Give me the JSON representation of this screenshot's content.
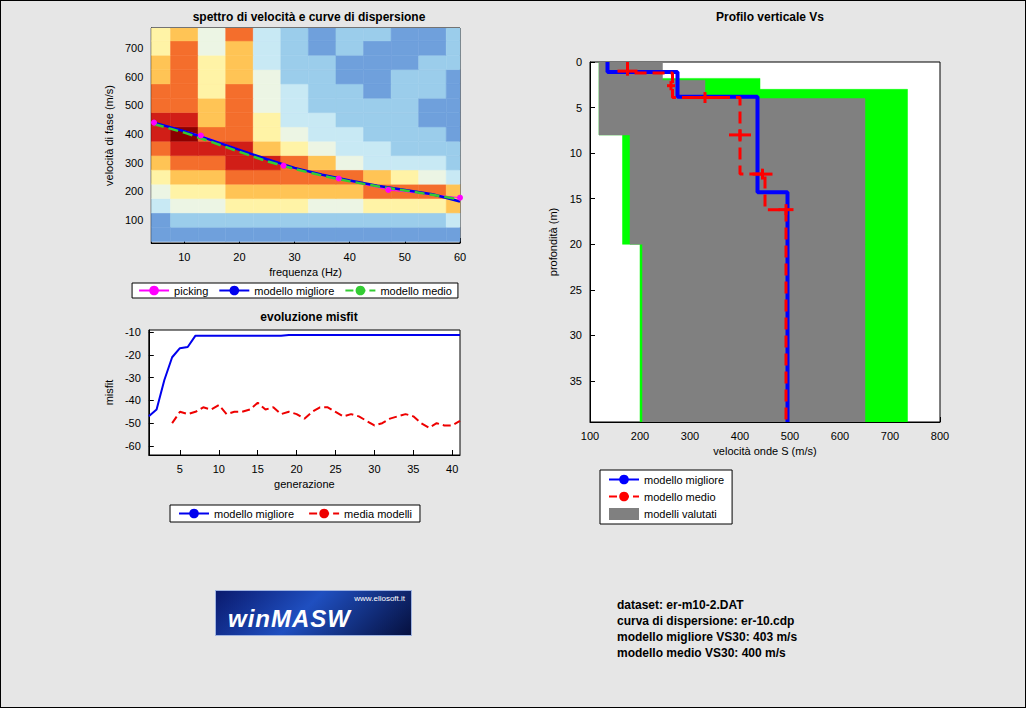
{
  "chart_data": [
    {
      "type": "line",
      "title": "spettro di velocità e curve di dispersione",
      "xlabel": "frequenza (Hz)",
      "ylabel": "velocità di fase (m/s)",
      "xlim": [
        4,
        60
      ],
      "xticks": [
        10,
        20,
        30,
        40,
        50,
        60
      ],
      "ylim": [
        20,
        770
      ],
      "yticks": [
        100,
        200,
        300,
        400,
        500,
        600,
        700
      ],
      "grid": false,
      "legend": "below",
      "spectrum": {
        "x": [
          5,
          10,
          15,
          20,
          25,
          30,
          35,
          40,
          45,
          50,
          55,
          60
        ],
        "y": [
          50,
          100,
          150,
          200,
          250,
          300,
          350,
          400,
          450,
          500,
          550,
          600,
          650,
          700,
          750
        ],
        "values": [
          [
            2,
            2,
            2,
            2,
            2,
            2,
            2,
            2,
            2,
            2,
            2,
            2
          ],
          [
            2,
            3,
            3,
            3,
            3,
            3,
            3,
            3,
            3,
            3,
            3,
            4
          ],
          [
            4,
            5,
            5,
            6,
            6,
            6,
            5,
            5,
            6,
            6,
            6,
            7
          ],
          [
            5,
            6,
            6,
            7,
            7,
            7,
            7,
            7,
            8,
            8,
            8,
            7
          ],
          [
            6,
            7,
            7,
            8,
            8,
            8,
            8,
            8,
            7,
            6,
            5,
            4
          ],
          [
            7,
            8,
            8,
            9,
            9,
            8,
            7,
            5,
            4,
            4,
            4,
            3
          ],
          [
            8,
            9,
            9,
            9,
            7,
            6,
            5,
            4,
            4,
            3,
            3,
            3
          ],
          [
            9,
            10,
            8,
            8,
            6,
            5,
            4,
            4,
            3,
            3,
            3,
            2
          ],
          [
            9,
            9,
            7,
            8,
            6,
            4,
            4,
            3,
            3,
            3,
            2,
            2
          ],
          [
            8,
            8,
            7,
            8,
            5,
            4,
            3,
            3,
            3,
            3,
            2,
            2
          ],
          [
            8,
            8,
            6,
            8,
            5,
            4,
            3,
            3,
            2,
            3,
            3,
            2
          ],
          [
            7,
            8,
            6,
            7,
            5,
            3,
            3,
            2,
            2,
            3,
            3,
            2
          ],
          [
            7,
            8,
            6,
            7,
            4,
            3,
            3,
            2,
            2,
            2,
            3,
            3
          ],
          [
            6,
            8,
            5,
            7,
            4,
            3,
            2,
            3,
            2,
            2,
            2,
            3
          ],
          [
            6,
            7,
            5,
            8,
            4,
            3,
            2,
            3,
            3,
            2,
            2,
            3
          ]
        ]
      },
      "series": [
        {
          "name": "picking",
          "color": "#ff00ff",
          "marker": "circle",
          "line_style": "solid",
          "x": [
            4.5,
            13,
            28,
            38,
            47,
            60
          ],
          "values": [
            440,
            395,
            290,
            245,
            205,
            178
          ]
        },
        {
          "name": "modello migliore",
          "color": "#0000ee",
          "line_style": "solid",
          "x": [
            4.5,
            10,
            15,
            20,
            25,
            30,
            35,
            40,
            45,
            50,
            55,
            60
          ],
          "values": [
            440,
            410,
            378,
            345,
            312,
            282,
            258,
            238,
            220,
            205,
            190,
            165
          ]
        },
        {
          "name": "modello medio",
          "color": "#33cc33",
          "line_style": "dashed",
          "x": [
            4.5,
            10,
            15,
            20,
            25,
            30,
            35,
            40,
            45,
            50,
            55,
            60
          ],
          "values": [
            435,
            405,
            372,
            338,
            305,
            278,
            255,
            235,
            218,
            203,
            188,
            172
          ]
        }
      ]
    },
    {
      "type": "line",
      "title": "evoluzione misfit",
      "xlabel": "generazione",
      "ylabel": "misfit",
      "xlim": [
        1,
        41
      ],
      "xticks": [
        5,
        10,
        15,
        20,
        25,
        30,
        35,
        40
      ],
      "ylim": [
        -64,
        -9
      ],
      "yticks": [
        -60,
        -50,
        -40,
        -30,
        -20,
        -10
      ],
      "grid": false,
      "legend": "below",
      "x": [
        1,
        2,
        3,
        4,
        5,
        6,
        7,
        8,
        9,
        10,
        11,
        12,
        13,
        14,
        15,
        16,
        17,
        18,
        19,
        20,
        21,
        22,
        23,
        24,
        25,
        26,
        27,
        28,
        29,
        30,
        31,
        32,
        33,
        34,
        35,
        36,
        37,
        38,
        39,
        40,
        41
      ],
      "series": [
        {
          "name": "modello migliore",
          "color": "#0000ee",
          "line_style": "solid",
          "values": [
            -47,
            -44,
            -31,
            -21,
            -17,
            -16.5,
            -11.5,
            -11.5,
            -11.5,
            -11.5,
            -11.5,
            -11.5,
            -11.5,
            -11.5,
            -11.5,
            -11.5,
            -11.5,
            -11.5,
            -11.2,
            -11.2,
            -11.2,
            -11.2,
            -11.2,
            -11.2,
            -11.2,
            -11.2,
            -11.2,
            -11.2,
            -11.2,
            -11.2,
            -11.2,
            -11.2,
            -11.2,
            -11.2,
            -11.2,
            -11.2,
            -11.2,
            -11.2,
            -11.2,
            -11.2,
            -11.2
          ]
        },
        {
          "name": "media modelli",
          "color": "#ee0000",
          "line_style": "dashed",
          "values": [
            null,
            null,
            null,
            -50,
            -45,
            -46,
            -45,
            -43,
            -44,
            -42,
            -46,
            -45,
            -45,
            -44,
            -41,
            -44,
            -43,
            -46,
            -45,
            -46,
            -48,
            -45,
            -43,
            -43,
            -45,
            -47,
            -46,
            -47,
            -49,
            -51,
            -50,
            -48,
            -47,
            -46,
            -47,
            -50,
            -52,
            -50,
            -51,
            -51,
            -49
          ]
        }
      ]
    },
    {
      "type": "line",
      "title": "Profilo verticale Vs",
      "xlabel": "velocità onde S (m/s)",
      "ylabel": "profondità (m)",
      "xlim": [
        100,
        800
      ],
      "xticks": [
        100,
        200,
        300,
        400,
        500,
        600,
        700,
        800
      ],
      "ylim": [
        39.5,
        0
      ],
      "yticks": [
        0,
        5,
        10,
        15,
        20,
        25,
        30,
        35
      ],
      "grid": false,
      "legend": "below",
      "series": [
        {
          "name": "modello migliore",
          "type": "line",
          "color": "#0000ff",
          "line_style": "solid",
          "velocity": [
            135,
            135,
            275,
            275,
            435,
            435,
            495,
            495
          ],
          "depth": [
            0,
            1.1,
            1.1,
            3.8,
            3.8,
            14.3,
            14.3,
            39.5
          ]
        },
        {
          "name": "modello medio",
          "type": "line",
          "color": "#ff0000",
          "line_style": "dashed",
          "velocity": [
            175,
            175,
            265,
            265,
            400,
            400,
            450,
            450,
            492,
            492
          ],
          "depth": [
            0,
            1.2,
            1.2,
            3.9,
            3.9,
            12.3,
            12.3,
            16.2,
            16.2,
            39.5
          ],
          "error_bars": {
            "velocity": [
              175,
              262,
              330,
              400,
              445,
              492
            ],
            "depth": [
              1.0,
              2.6,
              3.9,
              8.0,
              12.3,
              16.2
            ],
            "velocity_err": [
              20,
              8,
              30,
              22,
              20,
              15
            ],
            "depth_err": [
              0.5,
              0.5,
              0.6,
              0.6,
              0.6,
              0.6
            ]
          }
        },
        {
          "name": "modelli valutati",
          "type": "band",
          "color": "#808080",
          "ranges": [
            {
              "color": "#00ff00",
              "depth": [
                0,
                1.8,
                3,
                8,
                20,
                39.5
              ],
              "min": [
                118,
                118,
                118,
                165,
                200
              ],
              "max": [
                230,
                440,
                735,
                735,
                735
              ]
            },
            {
              "color": "#808080",
              "depth": [
                0,
                2,
                4,
                8,
                20,
                39.5
              ],
              "min": [
                118,
                118,
                118,
                180,
                205
              ],
              "max": [
                245,
                330,
                650,
                650,
                650
              ]
            }
          ]
        }
      ]
    }
  ],
  "logo": {
    "url": "www.eliosoft.it",
    "text": "winMASW"
  },
  "info": [
    "dataset: er-m10-2.DAT",
    "curva di dispersione: er-10.cdp",
    "modello migliore VS30: 403 m/s",
    "modello medio VS30: 400 m/s"
  ]
}
